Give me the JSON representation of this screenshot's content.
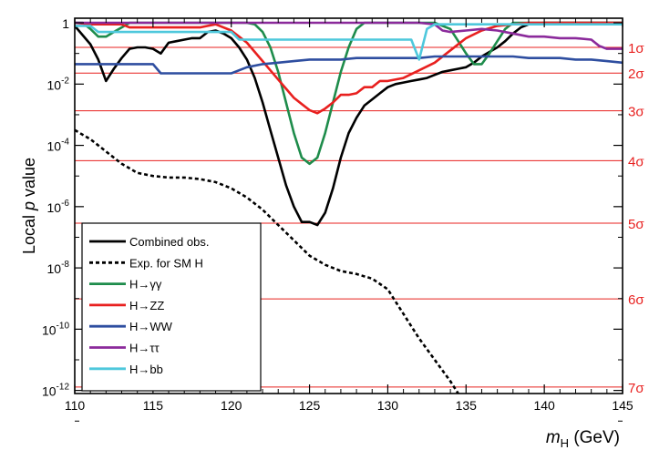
{
  "chart_data": {
    "type": "line",
    "title": "",
    "xlabel": {
      "var": "m",
      "sub": "H",
      "unit": " (GeV)"
    },
    "ylabel": {
      "pre": "Local ",
      "var": "p",
      "post": " value"
    },
    "xlim": [
      110,
      145
    ],
    "ylim_log10": [
      -12.1,
      0.15
    ],
    "y_scale": "log",
    "x_ticks": [
      "110",
      "115",
      "120",
      "125",
      "130",
      "135",
      "140",
      "145"
    ],
    "y_ticks": [
      {
        "base": "1",
        "exp": ""
      },
      {
        "base": "10",
        "exp": "-2"
      },
      {
        "base": "10",
        "exp": "-4"
      },
      {
        "base": "10",
        "exp": "-6"
      },
      {
        "base": "10",
        "exp": "-8"
      },
      {
        "base": "10",
        "exp": "-10"
      },
      {
        "base": "10",
        "exp": "-12"
      }
    ],
    "sigma_lines": [
      {
        "label": "1σ",
        "log10p": -0.8
      },
      {
        "label": "2σ",
        "log10p": -1.64
      },
      {
        "label": "3σ",
        "log10p": -2.87
      },
      {
        "label": "4σ",
        "log10p": -4.5
      },
      {
        "label": "5σ",
        "log10p": -6.54
      },
      {
        "label": "6σ",
        "log10p": -9.01
      },
      {
        "label": "7σ",
        "log10p": -11.89
      }
    ],
    "legend_position": "bottom-left",
    "series": [
      {
        "name": "Combined obs.",
        "color": "#000000",
        "style": "solid",
        "x": [
          110,
          110.5,
          111,
          111.5,
          112,
          112.5,
          113,
          113.5,
          114,
          114.5,
          115,
          115.5,
          116,
          116.5,
          117,
          117.5,
          118,
          118.5,
          119,
          119.5,
          120,
          120.5,
          121,
          121.5,
          122,
          122.5,
          123,
          123.5,
          124,
          124.5,
          125,
          125.5,
          126,
          126.5,
          127,
          127.5,
          128,
          128.5,
          129,
          129.5,
          130,
          130.5,
          131,
          131.5,
          132,
          132.5,
          133,
          133.5,
          134,
          134.5,
          135,
          135.5,
          136,
          136.5,
          137,
          137.5,
          138,
          138.5,
          139,
          140,
          141,
          142,
          143,
          144,
          145
        ],
        "log10p": [
          -0.1,
          -0.4,
          -0.7,
          -1.2,
          -1.9,
          -1.5,
          -1.15,
          -0.85,
          -0.8,
          -0.8,
          -0.85,
          -1.0,
          -0.65,
          -0.6,
          -0.55,
          -0.5,
          -0.5,
          -0.3,
          -0.25,
          -0.35,
          -0.5,
          -0.8,
          -1.2,
          -1.8,
          -2.6,
          -3.5,
          -4.4,
          -5.3,
          -6.0,
          -6.5,
          -6.5,
          -6.6,
          -6.2,
          -5.4,
          -4.4,
          -3.6,
          -3.1,
          -2.7,
          -2.5,
          -2.3,
          -2.1,
          -2.0,
          -1.95,
          -1.9,
          -1.85,
          -1.8,
          -1.7,
          -1.6,
          -1.55,
          -1.5,
          -1.45,
          -1.3,
          -1.1,
          -0.95,
          -0.8,
          -0.6,
          -0.35,
          -0.15,
          -0.05,
          0,
          0,
          0,
          0,
          0,
          0
        ]
      },
      {
        "name": "Exp. for SM H",
        "color": "#000000",
        "style": "dashed",
        "x": [
          110,
          111,
          112,
          113,
          114,
          115,
          116,
          117,
          118,
          119,
          120,
          121,
          122,
          123,
          124,
          125,
          126,
          127,
          128,
          129,
          130,
          131,
          132,
          133,
          134,
          134.5
        ],
        "log10p": [
          -3.5,
          -3.8,
          -4.2,
          -4.6,
          -4.9,
          -5.0,
          -5.05,
          -5.05,
          -5.1,
          -5.2,
          -5.4,
          -5.7,
          -6.1,
          -6.6,
          -7.1,
          -7.6,
          -7.9,
          -8.1,
          -8.2,
          -8.35,
          -8.7,
          -9.5,
          -10.3,
          -11.0,
          -11.7,
          -12.1
        ]
      },
      {
        "name": "H→γγ",
        "color": "#1e8c4b",
        "style": "solid",
        "x": [
          110,
          110.5,
          111,
          111.5,
          112,
          112.5,
          113,
          113.5,
          114,
          115,
          116,
          117,
          118,
          119,
          120,
          121,
          121.5,
          122,
          122.5,
          123,
          123.5,
          124,
          124.5,
          125,
          125.5,
          126,
          126.5,
          127,
          127.5,
          128,
          128.5,
          129,
          130,
          131,
          132,
          133,
          134,
          134.5,
          135,
          135.5,
          136,
          136.5,
          137,
          137.5,
          138,
          139,
          140,
          141,
          142,
          143,
          144,
          145
        ],
        "log10p": [
          0,
          0,
          -0.2,
          -0.45,
          -0.45,
          -0.3,
          -0.15,
          0,
          0,
          0,
          0,
          0,
          0,
          0,
          0,
          0,
          -0.05,
          -0.3,
          -0.8,
          -1.6,
          -2.6,
          -3.6,
          -4.4,
          -4.6,
          -4.4,
          -3.6,
          -2.6,
          -1.6,
          -0.8,
          -0.2,
          0,
          0,
          0,
          0,
          0,
          0,
          -0.2,
          -0.6,
          -1.0,
          -1.35,
          -1.35,
          -1.0,
          -0.6,
          -0.2,
          0,
          0,
          0,
          0,
          0,
          0,
          0,
          0
        ]
      },
      {
        "name": "H→ZZ",
        "color": "#e8201f",
        "style": "solid",
        "x": [
          110,
          111,
          112,
          113,
          113.5,
          114,
          115,
          116,
          117,
          118,
          118.5,
          119,
          119.5,
          120,
          120.5,
          121,
          121.5,
          122,
          122.5,
          123,
          123.5,
          124,
          124.5,
          125,
          125.5,
          126,
          126.5,
          127,
          127.5,
          128,
          128.5,
          129,
          129.5,
          130,
          131,
          132,
          133,
          134,
          135,
          136,
          137,
          138,
          139,
          140,
          141,
          142,
          143,
          144,
          145
        ],
        "log10p": [
          0,
          -0.05,
          -0.05,
          -0.05,
          -0.15,
          -0.15,
          -0.15,
          -0.15,
          -0.15,
          -0.15,
          -0.1,
          -0.05,
          -0.15,
          -0.25,
          -0.45,
          -0.65,
          -0.95,
          -1.25,
          -1.55,
          -1.85,
          -2.15,
          -2.45,
          -2.65,
          -2.85,
          -2.95,
          -2.8,
          -2.6,
          -2.35,
          -2.35,
          -2.3,
          -2.1,
          -2.1,
          -1.9,
          -1.9,
          -1.8,
          -1.55,
          -1.3,
          -0.9,
          -0.5,
          -0.25,
          -0.1,
          -0.05,
          0,
          0,
          0,
          0,
          0,
          0,
          0
        ]
      },
      {
        "name": "H→WW",
        "color": "#2e4ea0",
        "style": "solid",
        "x": [
          110,
          111,
          112,
          113,
          114,
          115,
          115.5,
          116,
          117,
          118,
          119,
          120,
          121,
          122,
          123,
          124,
          125,
          126,
          127,
          128,
          129,
          130,
          131,
          132,
          133,
          134,
          135,
          136,
          137,
          138,
          139,
          140,
          141,
          142,
          143,
          144,
          145
        ],
        "log10p": [
          -1.35,
          -1.35,
          -1.35,
          -1.35,
          -1.35,
          -1.35,
          -1.65,
          -1.65,
          -1.65,
          -1.65,
          -1.65,
          -1.65,
          -1.45,
          -1.35,
          -1.3,
          -1.25,
          -1.2,
          -1.2,
          -1.2,
          -1.15,
          -1.15,
          -1.15,
          -1.15,
          -1.15,
          -1.1,
          -1.1,
          -1.1,
          -1.1,
          -1.1,
          -1.1,
          -1.15,
          -1.15,
          -1.15,
          -1.2,
          -1.2,
          -1.25,
          -1.3
        ]
      },
      {
        "name": "H→ττ",
        "color": "#8b2a9b",
        "style": "solid",
        "x": [
          110,
          112,
          114,
          116,
          118,
          120,
          122,
          124,
          126,
          128,
          130,
          132,
          133,
          133.5,
          134,
          135,
          136,
          137,
          138,
          139,
          140,
          141,
          142,
          143,
          143.5,
          144,
          145
        ],
        "log10p": [
          0,
          0,
          0,
          0,
          0,
          0,
          0,
          0,
          0,
          0,
          0,
          0,
          -0.05,
          -0.25,
          -0.3,
          -0.25,
          -0.2,
          -0.25,
          -0.35,
          -0.45,
          -0.45,
          -0.5,
          -0.5,
          -0.55,
          -0.75,
          -0.85,
          -0.85
        ]
      },
      {
        "name": "H→bb",
        "color": "#4ec8dc",
        "style": "solid",
        "x": [
          110,
          111,
          111.5,
          112,
          113,
          114,
          115,
          116,
          117,
          118,
          119,
          120,
          120.5,
          121,
          122,
          123,
          124,
          125,
          126,
          127,
          128,
          129,
          130,
          131,
          131.5,
          132,
          132.5,
          133,
          134,
          135,
          136,
          137,
          138,
          139,
          140,
          141,
          142,
          143,
          144,
          145
        ],
        "log10p": [
          -0.1,
          -0.1,
          -0.3,
          -0.3,
          -0.3,
          -0.3,
          -0.3,
          -0.3,
          -0.3,
          -0.3,
          -0.3,
          -0.3,
          -0.55,
          -0.55,
          -0.55,
          -0.55,
          -0.55,
          -0.55,
          -0.55,
          -0.55,
          -0.55,
          -0.55,
          -0.55,
          -0.55,
          -0.55,
          -1.2,
          -0.2,
          -0.05,
          -0.05,
          -0.05,
          -0.05,
          -0.05,
          -0.05,
          -0.05,
          -0.05,
          -0.05,
          -0.05,
          -0.05,
          -0.05,
          -0.05
        ]
      }
    ]
  }
}
